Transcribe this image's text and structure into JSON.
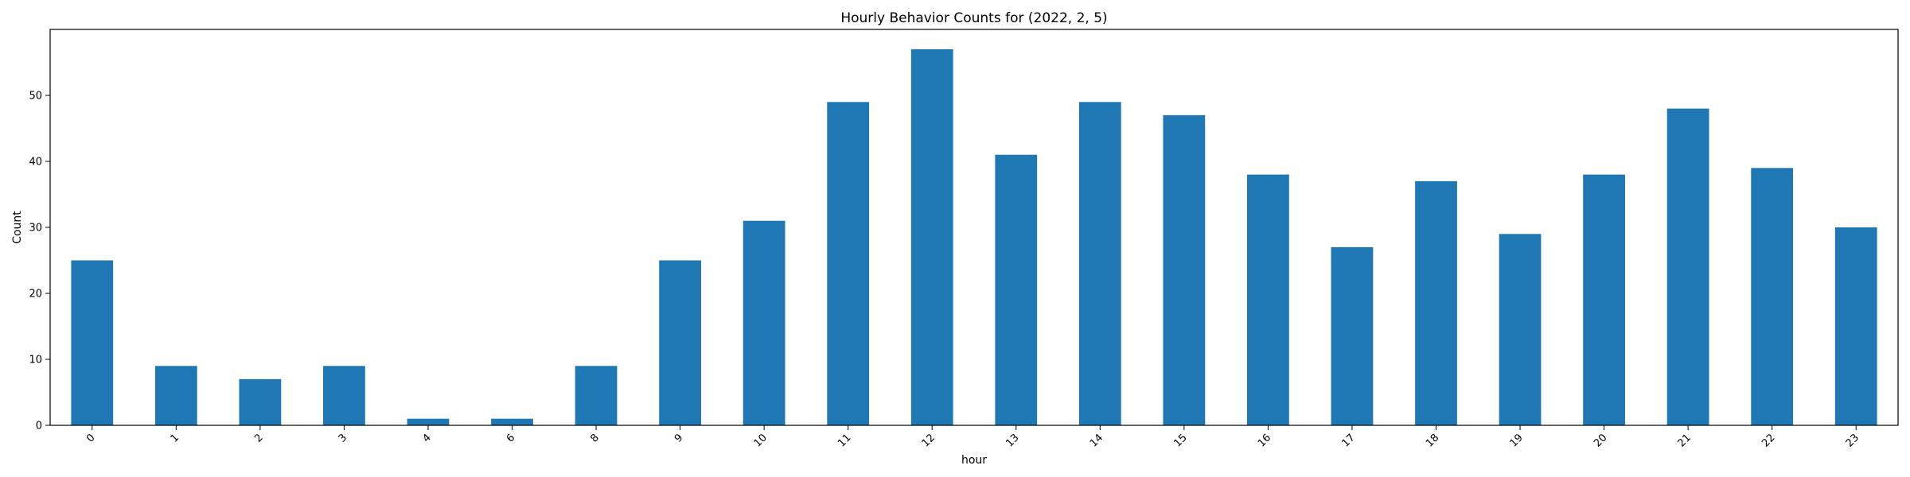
{
  "chart_data": {
    "type": "bar",
    "title": "Hourly Behavior Counts for (2022, 2, 5)",
    "xlabel": "hour",
    "ylabel": "Count",
    "categories": [
      "0",
      "1",
      "2",
      "3",
      "4",
      "6",
      "8",
      "9",
      "10",
      "11",
      "12",
      "13",
      "14",
      "15",
      "16",
      "17",
      "18",
      "19",
      "20",
      "21",
      "22",
      "23"
    ],
    "values": [
      25,
      9,
      7,
      9,
      1,
      1,
      9,
      25,
      31,
      49,
      57,
      41,
      49,
      47,
      38,
      27,
      37,
      29,
      38,
      48,
      39,
      30
    ],
    "ylim": [
      0,
      60
    ],
    "yticks": [
      "0",
      "10",
      "20",
      "30",
      "40",
      "50"
    ],
    "bar_color": "#1f77b4",
    "grid": false,
    "legend": "none"
  }
}
